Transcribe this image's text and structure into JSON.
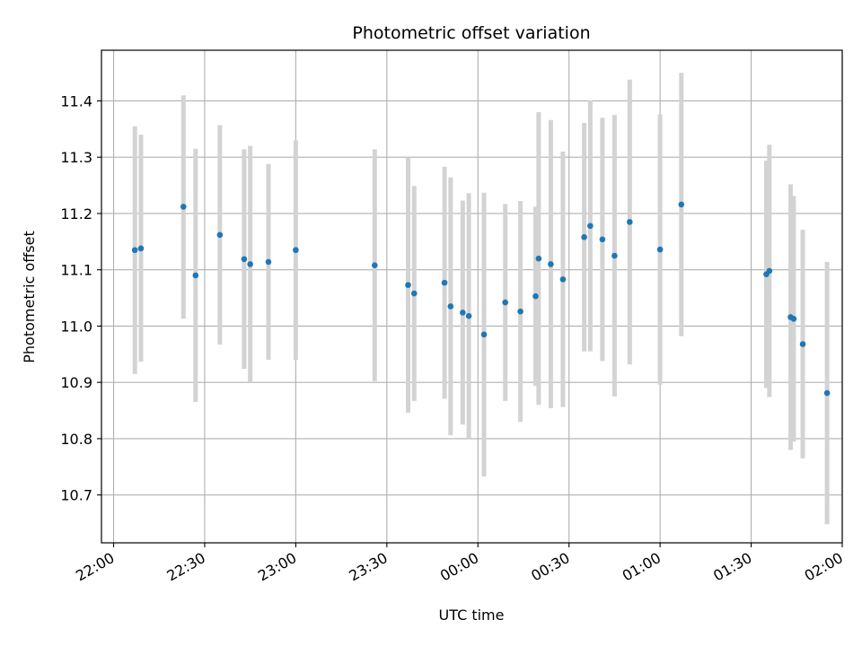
{
  "chart_data": {
    "type": "scatter",
    "title": "Photometric offset variation",
    "xlabel": "UTC time",
    "ylabel": "Photometric offset",
    "x_unit": "minutes",
    "xlim": [
      -4,
      240
    ],
    "ylim": [
      10.615,
      11.49
    ],
    "grid": true,
    "x_ticks": [
      {
        "value": 0,
        "label": "22:00"
      },
      {
        "value": 30,
        "label": "22:30"
      },
      {
        "value": 60,
        "label": "23:00"
      },
      {
        "value": 90,
        "label": "23:30"
      },
      {
        "value": 120,
        "label": "00:00"
      },
      {
        "value": 150,
        "label": "00:30"
      },
      {
        "value": 180,
        "label": "01:00"
      },
      {
        "value": 210,
        "label": "01:30"
      },
      {
        "value": 240,
        "label": "02:00"
      }
    ],
    "y_ticks": [
      10.7,
      10.8,
      10.9,
      11.0,
      11.1,
      11.2,
      11.3,
      11.4
    ],
    "point_color": "#1f77b4",
    "errorbar_color": "#d3d3d3",
    "points": [
      {
        "t": "22:07",
        "y": 11.135,
        "lo": 10.915,
        "hi": 11.355
      },
      {
        "t": "22:09",
        "y": 11.138,
        "lo": 10.937,
        "hi": 11.34
      },
      {
        "t": "22:23",
        "y": 11.212,
        "lo": 11.013,
        "hi": 11.41
      },
      {
        "t": "22:27",
        "y": 11.09,
        "lo": 10.865,
        "hi": 11.315
      },
      {
        "t": "22:35",
        "y": 11.162,
        "lo": 10.967,
        "hi": 11.357
      },
      {
        "t": "22:43",
        "y": 11.119,
        "lo": 10.924,
        "hi": 11.314
      },
      {
        "t": "22:45",
        "y": 11.11,
        "lo": 10.9,
        "hi": 11.32
      },
      {
        "t": "22:51",
        "y": 11.114,
        "lo": 10.94,
        "hi": 11.288
      },
      {
        "t": "23:00",
        "y": 11.135,
        "lo": 10.94,
        "hi": 11.33
      },
      {
        "t": "23:26",
        "y": 11.108,
        "lo": 10.902,
        "hi": 11.314
      },
      {
        "t": "23:37",
        "y": 11.073,
        "lo": 10.846,
        "hi": 11.3
      },
      {
        "t": "23:39",
        "y": 11.058,
        "lo": 10.867,
        "hi": 11.249
      },
      {
        "t": "23:49",
        "y": 11.077,
        "lo": 10.871,
        "hi": 11.283
      },
      {
        "t": "23:51",
        "y": 11.035,
        "lo": 10.806,
        "hi": 11.264
      },
      {
        "t": "23:55",
        "y": 11.024,
        "lo": 10.825,
        "hi": 11.223
      },
      {
        "t": "23:57",
        "y": 11.018,
        "lo": 10.8,
        "hi": 11.236
      },
      {
        "t": "00:02",
        "y": 10.985,
        "lo": 10.733,
        "hi": 11.237
      },
      {
        "t": "00:09",
        "y": 11.042,
        "lo": 10.867,
        "hi": 11.217
      },
      {
        "t": "00:14",
        "y": 11.026,
        "lo": 10.83,
        "hi": 11.222
      },
      {
        "t": "00:19",
        "y": 11.053,
        "lo": 10.894,
        "hi": 11.212
      },
      {
        "t": "00:20",
        "y": 11.12,
        "lo": 10.86,
        "hi": 11.38
      },
      {
        "t": "00:24",
        "y": 11.11,
        "lo": 10.854,
        "hi": 11.366
      },
      {
        "t": "00:28",
        "y": 11.083,
        "lo": 10.856,
        "hi": 11.31
      },
      {
        "t": "00:35",
        "y": 11.158,
        "lo": 10.955,
        "hi": 11.361
      },
      {
        "t": "00:37",
        "y": 11.178,
        "lo": 10.955,
        "hi": 11.401
      },
      {
        "t": "00:41",
        "y": 11.154,
        "lo": 10.938,
        "hi": 11.37
      },
      {
        "t": "00:45",
        "y": 11.125,
        "lo": 10.875,
        "hi": 11.375
      },
      {
        "t": "00:50",
        "y": 11.185,
        "lo": 10.932,
        "hi": 11.438
      },
      {
        "t": "01:00",
        "y": 11.136,
        "lo": 10.896,
        "hi": 11.376
      },
      {
        "t": "01:07",
        "y": 11.216,
        "lo": 10.982,
        "hi": 11.45
      },
      {
        "t": "01:35",
        "y": 11.092,
        "lo": 10.89,
        "hi": 11.294
      },
      {
        "t": "01:36",
        "y": 11.098,
        "lo": 10.874,
        "hi": 11.322
      },
      {
        "t": "01:43",
        "y": 11.016,
        "lo": 10.78,
        "hi": 11.252
      },
      {
        "t": "01:44",
        "y": 11.013,
        "lo": 10.795,
        "hi": 11.231
      },
      {
        "t": "01:47",
        "y": 10.968,
        "lo": 10.765,
        "hi": 11.171
      },
      {
        "t": "01:55",
        "y": 10.881,
        "lo": 10.648,
        "hi": 11.114
      }
    ]
  }
}
